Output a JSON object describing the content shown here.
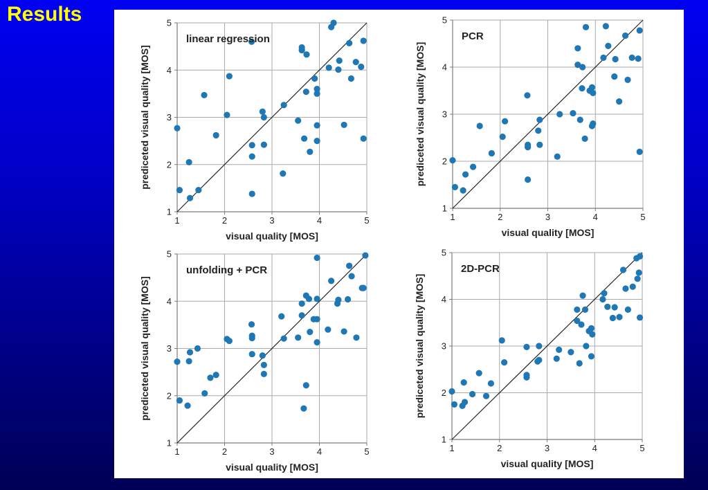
{
  "slide": {
    "title": "Results"
  },
  "chart_data": [
    {
      "type": "scatter",
      "title": "linear regression",
      "xlabel": "visual quality [MOS]",
      "ylabel": "prediceted visual quality [MOS]",
      "xlim": [
        1,
        5
      ],
      "ylim": [
        1,
        5
      ],
      "xticks": [
        "1",
        "2",
        "3",
        "4",
        "5"
      ],
      "yticks": [
        "1",
        "2",
        "3",
        "4",
        "5"
      ],
      "grid": true,
      "reference_line": "y = x",
      "marker_color": "#1f77b4",
      "points": [
        [
          1.0,
          2.77
        ],
        [
          1.05,
          1.46
        ],
        [
          1.25,
          2.05
        ],
        [
          1.27,
          1.29
        ],
        [
          1.45,
          1.46
        ],
        [
          1.57,
          3.47
        ],
        [
          1.82,
          2.62
        ],
        [
          2.05,
          3.05
        ],
        [
          2.1,
          3.87
        ],
        [
          2.57,
          4.6
        ],
        [
          2.58,
          2.41
        ],
        [
          2.58,
          2.17
        ],
        [
          2.58,
          1.38
        ],
        [
          2.8,
          3.12
        ],
        [
          2.83,
          3.0
        ],
        [
          2.83,
          2.42
        ],
        [
          3.23,
          1.81
        ],
        [
          3.25,
          3.26
        ],
        [
          3.55,
          2.93
        ],
        [
          3.63,
          4.48
        ],
        [
          3.63,
          4.42
        ],
        [
          3.68,
          2.55
        ],
        [
          3.72,
          3.54
        ],
        [
          3.73,
          4.33
        ],
        [
          3.8,
          2.27
        ],
        [
          3.9,
          3.82
        ],
        [
          3.95,
          3.6
        ],
        [
          3.95,
          3.5
        ],
        [
          3.95,
          2.83
        ],
        [
          3.95,
          2.5
        ],
        [
          4.2,
          4.05
        ],
        [
          4.25,
          4.91
        ],
        [
          4.3,
          5.0
        ],
        [
          4.4,
          4.01
        ],
        [
          4.42,
          4.2
        ],
        [
          4.52,
          2.84
        ],
        [
          4.63,
          4.57
        ],
        [
          4.67,
          3.82
        ],
        [
          4.77,
          4.17
        ],
        [
          4.88,
          4.07
        ],
        [
          4.93,
          4.62
        ],
        [
          4.93,
          2.55
        ]
      ]
    },
    {
      "type": "scatter",
      "title": "PCR",
      "xlabel": "visual quality [MOS]",
      "ylabel": "prediceted visual quality [MOS]",
      "xlim": [
        1,
        5
      ],
      "ylim": [
        1,
        5
      ],
      "xticks": [
        "1",
        "2",
        "3",
        "4",
        "5"
      ],
      "yticks": [
        "1",
        "2",
        "3",
        "4",
        "5"
      ],
      "grid": true,
      "reference_line": "y = x",
      "marker_color": "#1f77b4",
      "points": [
        [
          1.0,
          2.02
        ],
        [
          1.05,
          1.45
        ],
        [
          1.22,
          1.38
        ],
        [
          1.27,
          1.72
        ],
        [
          1.43,
          1.88
        ],
        [
          1.57,
          2.75
        ],
        [
          1.82,
          2.17
        ],
        [
          2.05,
          2.52
        ],
        [
          2.1,
          2.85
        ],
        [
          2.57,
          3.4
        ],
        [
          2.58,
          2.35
        ],
        [
          2.58,
          2.3
        ],
        [
          2.58,
          1.61
        ],
        [
          2.8,
          2.65
        ],
        [
          2.83,
          2.88
        ],
        [
          2.83,
          2.35
        ],
        [
          3.2,
          2.1
        ],
        [
          3.25,
          3.0
        ],
        [
          3.53,
          3.02
        ],
        [
          3.63,
          4.4
        ],
        [
          3.63,
          4.05
        ],
        [
          3.68,
          2.88
        ],
        [
          3.72,
          3.55
        ],
        [
          3.73,
          4.0
        ],
        [
          3.78,
          2.48
        ],
        [
          3.8,
          4.85
        ],
        [
          3.88,
          3.5
        ],
        [
          3.93,
          3.57
        ],
        [
          3.95,
          3.45
        ],
        [
          3.95,
          2.8
        ],
        [
          3.93,
          2.75
        ],
        [
          4.17,
          4.2
        ],
        [
          4.22,
          4.87
        ],
        [
          4.27,
          4.45
        ],
        [
          4.4,
          3.8
        ],
        [
          4.42,
          4.17
        ],
        [
          4.5,
          3.27
        ],
        [
          4.63,
          4.67
        ],
        [
          4.68,
          3.73
        ],
        [
          4.77,
          4.2
        ],
        [
          4.9,
          4.18
        ],
        [
          4.93,
          4.78
        ],
        [
          4.93,
          2.2
        ]
      ]
    },
    {
      "type": "scatter",
      "title": "unfolding + PCR",
      "xlabel": "visual quality [MOS]",
      "ylabel": "prediceted visual quality [MOS]",
      "xlim": [
        1,
        5
      ],
      "ylim": [
        1,
        5
      ],
      "xticks": [
        "1",
        "2",
        "3",
        "4",
        "5"
      ],
      "yticks": [
        "1",
        "2",
        "3",
        "4",
        "5"
      ],
      "grid": true,
      "reference_line": "y = x",
      "marker_color": "#1f77b4",
      "points": [
        [
          1.0,
          2.72
        ],
        [
          1.05,
          1.9
        ],
        [
          1.22,
          1.79
        ],
        [
          1.25,
          2.73
        ],
        [
          1.27,
          2.92
        ],
        [
          1.43,
          3.0
        ],
        [
          1.58,
          2.05
        ],
        [
          1.7,
          2.38
        ],
        [
          1.82,
          2.44
        ],
        [
          2.05,
          3.2
        ],
        [
          2.1,
          3.16
        ],
        [
          2.57,
          3.51
        ],
        [
          2.58,
          3.27
        ],
        [
          2.58,
          3.22
        ],
        [
          2.58,
          2.88
        ],
        [
          2.8,
          2.85
        ],
        [
          2.83,
          2.65
        ],
        [
          2.83,
          2.46
        ],
        [
          3.2,
          3.68
        ],
        [
          3.25,
          3.21
        ],
        [
          3.55,
          3.23
        ],
        [
          3.63,
          3.7
        ],
        [
          3.63,
          3.95
        ],
        [
          3.67,
          1.73
        ],
        [
          3.72,
          2.22
        ],
        [
          3.72,
          4.12
        ],
        [
          3.78,
          4.05
        ],
        [
          3.8,
          3.35
        ],
        [
          3.88,
          3.62
        ],
        [
          3.95,
          3.62
        ],
        [
          3.95,
          4.05
        ],
        [
          3.95,
          4.92
        ],
        [
          3.95,
          3.13
        ],
        [
          4.18,
          3.4
        ],
        [
          4.25,
          4.43
        ],
        [
          4.38,
          3.95
        ],
        [
          4.4,
          4.03
        ],
        [
          4.52,
          3.36
        ],
        [
          4.6,
          4.04
        ],
        [
          4.63,
          4.75
        ],
        [
          4.68,
          4.53
        ],
        [
          4.78,
          3.23
        ],
        [
          4.9,
          4.28
        ],
        [
          4.93,
          4.28
        ],
        [
          4.97,
          4.97
        ]
      ]
    },
    {
      "type": "scatter",
      "title": "2D-PCR",
      "xlabel": "visual quality [MOS]",
      "ylabel": "prediceted visual quality [MOS]",
      "xlim": [
        1,
        5
      ],
      "ylim": [
        1,
        5
      ],
      "xticks": [
        "1",
        "2",
        "3",
        "4",
        "5"
      ],
      "yticks": [
        "1",
        "2",
        "3",
        "4",
        "5"
      ],
      "grid": true,
      "reference_line": "y = x",
      "marker_color": "#1f77b4",
      "points": [
        [
          1.0,
          2.03
        ],
        [
          1.05,
          1.75
        ],
        [
          1.22,
          1.72
        ],
        [
          1.25,
          2.22
        ],
        [
          1.27,
          1.8
        ],
        [
          1.43,
          1.97
        ],
        [
          1.57,
          2.42
        ],
        [
          1.72,
          1.93
        ],
        [
          1.82,
          2.2
        ],
        [
          2.05,
          3.12
        ],
        [
          2.1,
          2.65
        ],
        [
          2.57,
          2.98
        ],
        [
          2.57,
          2.38
        ],
        [
          2.57,
          2.33
        ],
        [
          2.8,
          2.67
        ],
        [
          2.83,
          2.7
        ],
        [
          2.83,
          3.0
        ],
        [
          3.2,
          2.73
        ],
        [
          3.25,
          2.92
        ],
        [
          3.5,
          2.87
        ],
        [
          3.63,
          3.78
        ],
        [
          3.63,
          3.54
        ],
        [
          3.68,
          2.63
        ],
        [
          3.72,
          3.46
        ],
        [
          3.75,
          4.08
        ],
        [
          3.8,
          3.78
        ],
        [
          3.82,
          3.0
        ],
        [
          3.88,
          3.32
        ],
        [
          3.93,
          3.38
        ],
        [
          3.93,
          2.78
        ],
        [
          3.95,
          3.25
        ],
        [
          4.17,
          4.0
        ],
        [
          4.2,
          4.13
        ],
        [
          4.27,
          3.84
        ],
        [
          4.38,
          3.6
        ],
        [
          4.42,
          3.83
        ],
        [
          4.52,
          3.62
        ],
        [
          4.6,
          4.63
        ],
        [
          4.65,
          4.23
        ],
        [
          4.7,
          3.78
        ],
        [
          4.8,
          4.27
        ],
        [
          4.88,
          4.88
        ],
        [
          4.9,
          4.44
        ],
        [
          4.93,
          4.57
        ],
        [
          4.95,
          4.92
        ],
        [
          4.95,
          3.61
        ]
      ]
    }
  ]
}
